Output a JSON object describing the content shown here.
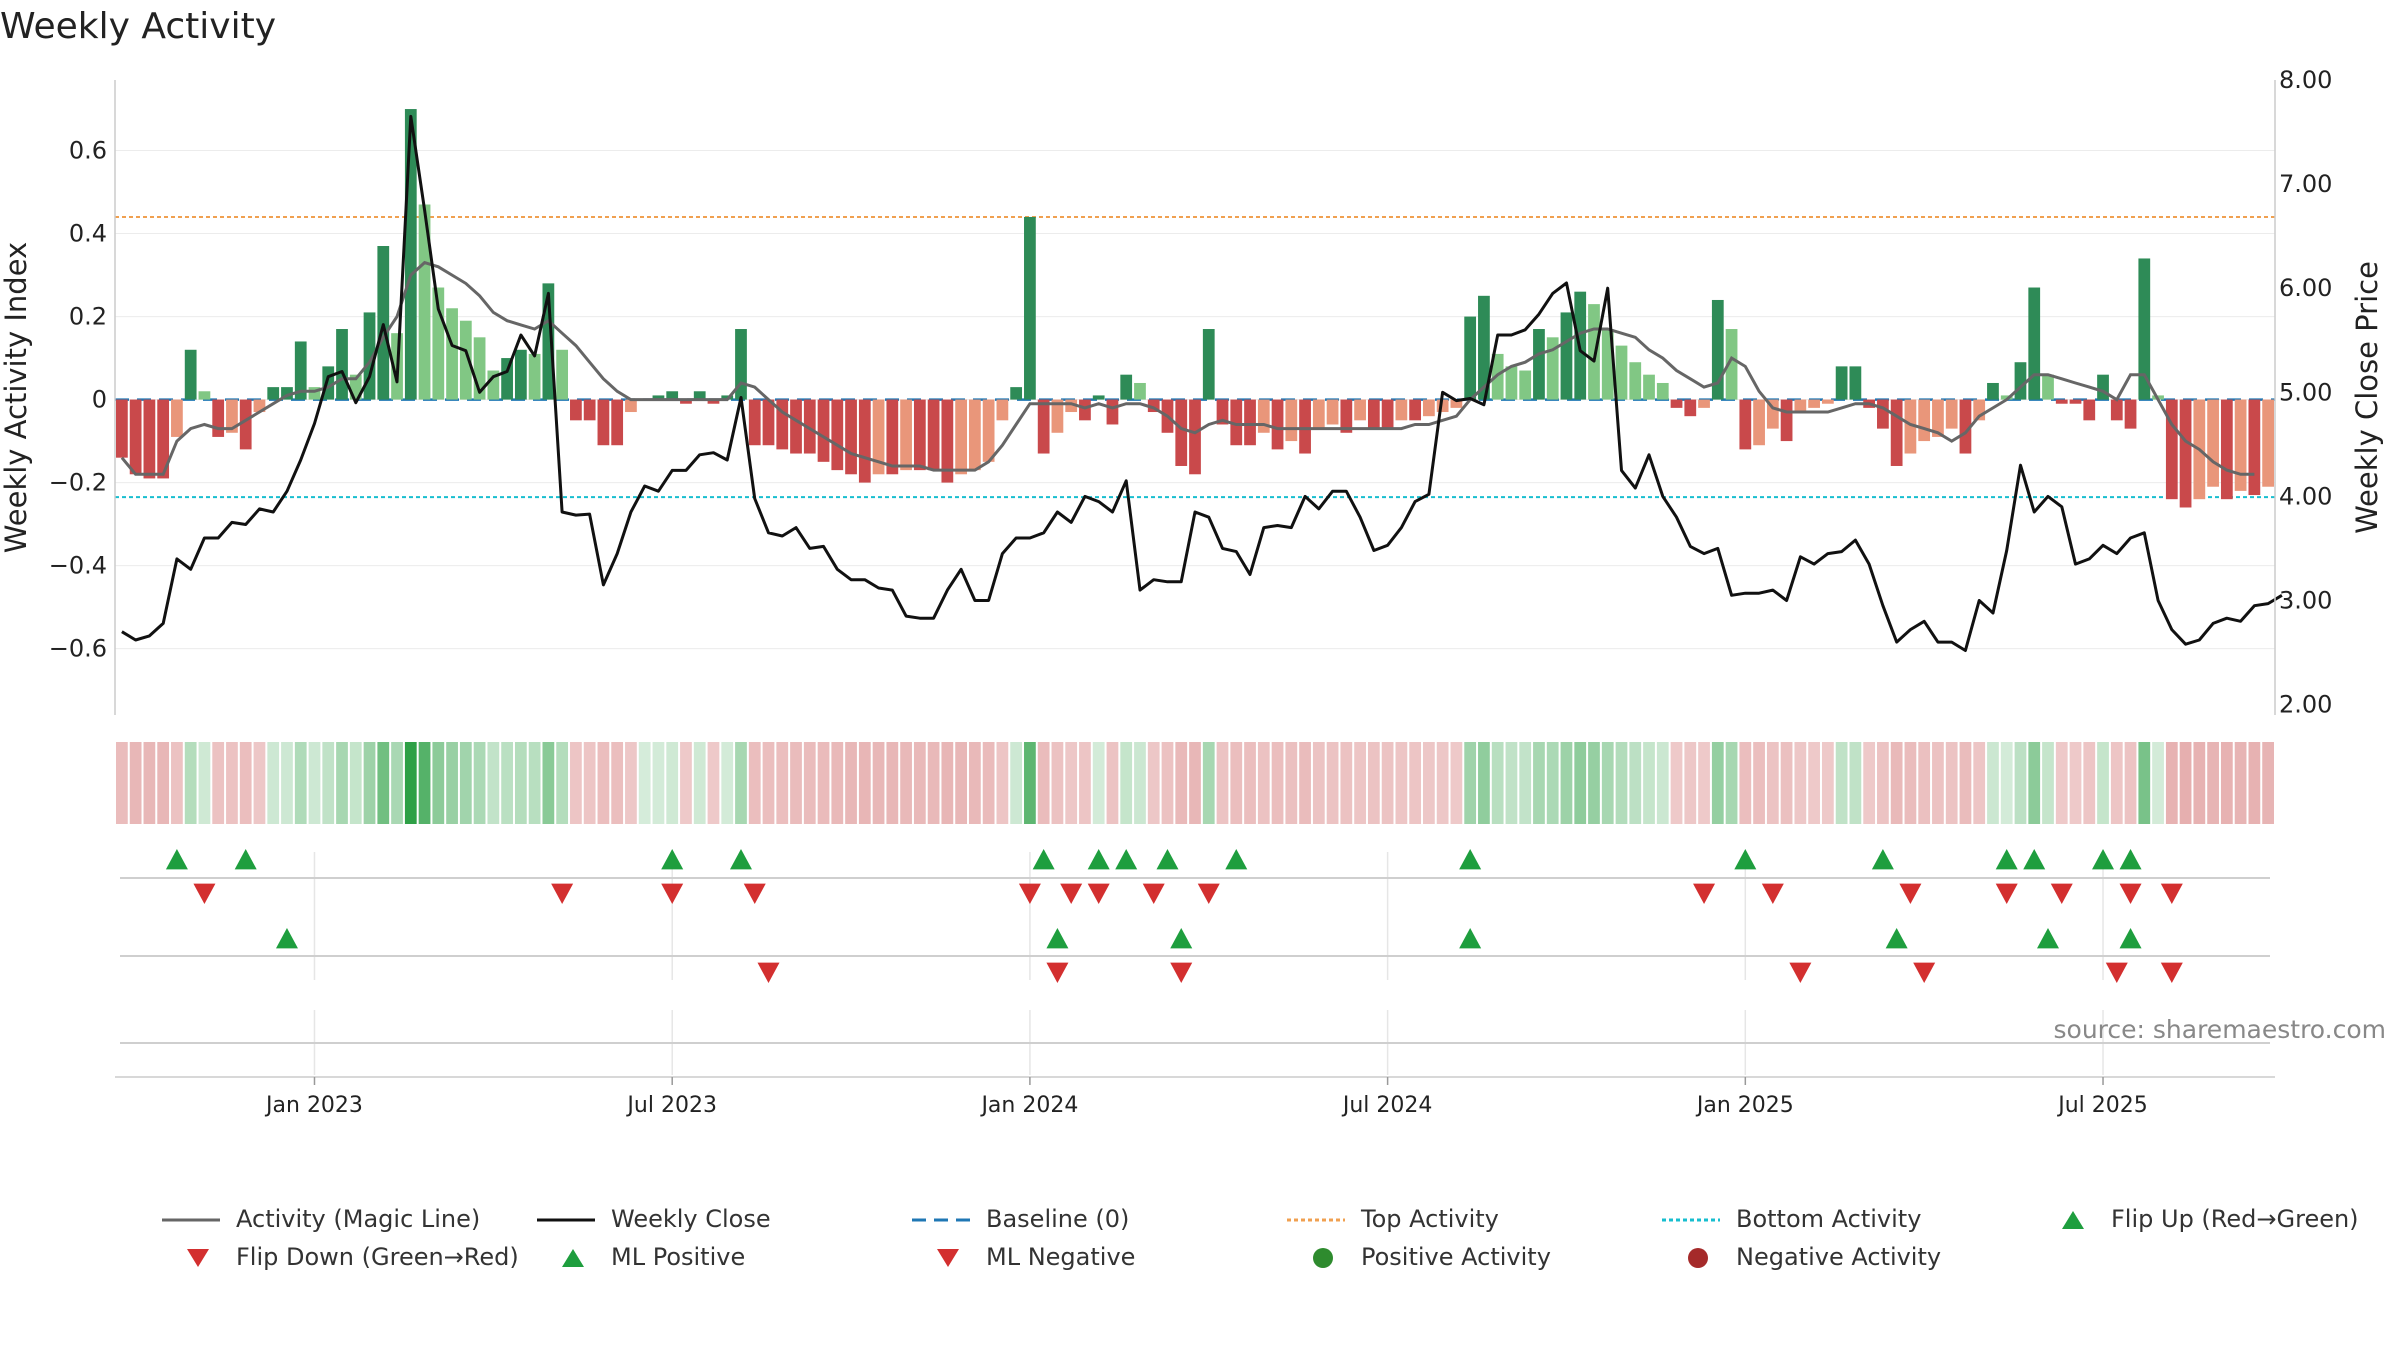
{
  "title": "Weekly Activity",
  "source": "source: sharemaestro.com",
  "colors": {
    "strong_green": "#2e8b57",
    "light_green": "#81c784",
    "strong_red": "#c9494b",
    "light_red": "#e9967a",
    "magic_line": "#666666",
    "close_line": "#111111",
    "baseline": "#1f77b4",
    "top_line": "#f0a050",
    "bottom_line": "#17becf",
    "marker_up": "#1e9e3e",
    "marker_down": "#d32f2f"
  },
  "chart_data": {
    "type": "bar",
    "title": "Weekly Activity",
    "ylabel": "Weekly Activity Index",
    "y2label": "Weekly Close Price",
    "ylim": [
      -0.76,
      0.77
    ],
    "y2lim": [
      1.9,
      8.0
    ],
    "yticks": [
      "0.6",
      "0.4",
      "0.2",
      "0",
      "−0.2",
      "−0.4",
      "−0.6"
    ],
    "ytick_values": [
      0.6,
      0.4,
      0.2,
      0,
      -0.2,
      -0.4,
      -0.6
    ],
    "y2ticks": [
      "8.00",
      "7.00",
      "6.00",
      "5.00",
      "4.00",
      "3.00",
      "2.00"
    ],
    "y2tick_values": [
      8,
      7,
      6,
      5,
      4,
      3,
      2
    ],
    "xticks": [
      "Jan 2023",
      "Jul 2023",
      "Jan 2024",
      "Jul 2024",
      "Jan 2025",
      "Jul 2025"
    ],
    "xtick_weeks": [
      14.5,
      40.5,
      66.5,
      92.5,
      118.5,
      144.5
    ],
    "top_activity": 0.44,
    "bottom_activity": -0.235,
    "baseline": 0,
    "activity": [
      -0.14,
      -0.18,
      -0.19,
      -0.19,
      -0.09,
      0.12,
      0.02,
      -0.09,
      -0.08,
      -0.12,
      -0.03,
      0.03,
      0.03,
      0.14,
      0.03,
      0.08,
      0.17,
      0.06,
      0.21,
      0.37,
      0.16,
      0.7,
      0.47,
      0.27,
      0.22,
      0.19,
      0.15,
      0.07,
      0.1,
      0.12,
      0.11,
      0.28,
      0.12,
      -0.05,
      -0.05,
      -0.11,
      -0.11,
      -0.03,
      0.0,
      0.01,
      0.02,
      -0.01,
      0.02,
      -0.01,
      0.01,
      0.17,
      -0.11,
      -0.11,
      -0.12,
      -0.13,
      -0.13,
      -0.15,
      -0.17,
      -0.18,
      -0.2,
      -0.18,
      -0.18,
      -0.17,
      -0.17,
      -0.17,
      -0.2,
      -0.18,
      -0.17,
      -0.15,
      -0.05,
      0.03,
      0.44,
      -0.13,
      -0.08,
      -0.03,
      -0.05,
      0.01,
      -0.06,
      0.06,
      0.04,
      -0.03,
      -0.08,
      -0.16,
      -0.18,
      0.17,
      -0.06,
      -0.11,
      -0.11,
      -0.08,
      -0.12,
      -0.1,
      -0.13,
      -0.07,
      -0.06,
      -0.08,
      -0.05,
      -0.07,
      -0.07,
      -0.05,
      -0.05,
      -0.04,
      -0.03,
      -0.02,
      0.2,
      0.25,
      0.11,
      0.08,
      0.07,
      0.17,
      0.15,
      0.21,
      0.26,
      0.23,
      0.17,
      0.13,
      0.09,
      0.06,
      0.04,
      -0.02,
      -0.04,
      -0.02,
      0.24,
      0.17,
      -0.12,
      -0.11,
      -0.07,
      -0.1,
      -0.03,
      -0.02,
      -0.01,
      0.08,
      0.08,
      -0.02,
      -0.07,
      -0.16,
      -0.13,
      -0.1,
      -0.09,
      -0.07,
      -0.13,
      -0.05,
      0.04,
      0.01,
      0.09,
      0.27,
      0.06,
      -0.01,
      -0.01,
      -0.05,
      0.06,
      -0.05,
      -0.07,
      0.34,
      0.01,
      -0.24,
      -0.26,
      -0.24,
      -0.21,
      -0.24,
      -0.22,
      -0.23,
      -0.21
    ],
    "weekly_close": [
      2.7,
      2.62,
      2.66,
      2.78,
      3.4,
      3.3,
      3.6,
      3.6,
      3.75,
      3.73,
      3.88,
      3.85,
      4.05,
      4.35,
      4.7,
      5.15,
      5.2,
      4.9,
      5.15,
      5.65,
      5.1,
      7.65,
      6.75,
      5.8,
      5.45,
      5.4,
      5.0,
      5.15,
      5.2,
      5.55,
      5.35,
      5.95,
      3.85,
      3.82,
      3.83,
      3.15,
      3.45,
      3.85,
      4.1,
      4.05,
      4.25,
      4.25,
      4.4,
      4.42,
      4.35,
      4.95,
      3.98,
      3.65,
      3.62,
      3.7,
      3.5,
      3.52,
      3.3,
      3.2,
      3.2,
      3.12,
      3.1,
      2.85,
      2.83,
      2.83,
      3.1,
      3.3,
      3.0,
      3.0,
      3.45,
      3.6,
      3.6,
      3.65,
      3.85,
      3.75,
      4.0,
      3.95,
      3.85,
      4.15,
      3.1,
      3.2,
      3.18,
      3.18,
      3.85,
      3.8,
      3.5,
      3.47,
      3.25,
      3.7,
      3.72,
      3.7,
      4.0,
      3.88,
      4.05,
      4.05,
      3.8,
      3.48,
      3.53,
      3.7,
      3.95,
      4.02,
      5.0,
      4.92,
      4.94,
      4.88,
      5.55,
      5.55,
      5.6,
      5.75,
      5.95,
      6.05,
      5.4,
      5.3,
      6.0,
      4.25,
      4.08,
      4.4,
      4.0,
      3.8,
      3.52,
      3.45,
      3.5,
      3.05,
      3.07,
      3.07,
      3.1,
      3.0,
      3.42,
      3.35,
      3.45,
      3.47,
      3.58,
      3.35,
      2.95,
      2.6,
      2.72,
      2.8,
      2.6,
      2.6,
      2.52,
      3.0,
      2.88,
      3.48,
      4.3,
      3.85,
      4.0,
      3.9,
      3.35,
      3.4,
      3.53,
      3.45,
      3.6,
      3.65,
      3.0,
      2.72,
      2.58,
      2.62,
      2.78,
      2.83,
      2.8,
      2.95,
      2.97,
      3.05
    ],
    "magic_line": [
      -0.14,
      -0.18,
      -0.18,
      -0.18,
      -0.1,
      -0.07,
      -0.06,
      -0.07,
      -0.07,
      -0.05,
      -0.03,
      -0.01,
      0.01,
      0.02,
      0.02,
      0.03,
      0.05,
      0.05,
      0.09,
      0.15,
      0.2,
      0.3,
      0.33,
      0.32,
      0.3,
      0.28,
      0.25,
      0.21,
      0.19,
      0.18,
      0.17,
      0.19,
      0.16,
      0.13,
      0.09,
      0.05,
      0.02,
      0.0,
      0.0,
      0.0,
      0.0,
      0.0,
      0.0,
      0.0,
      0.0,
      0.04,
      0.03,
      0.0,
      -0.03,
      -0.05,
      -0.07,
      -0.09,
      -0.11,
      -0.13,
      -0.14,
      -0.15,
      -0.16,
      -0.16,
      -0.16,
      -0.17,
      -0.17,
      -0.17,
      -0.17,
      -0.15,
      -0.11,
      -0.06,
      -0.01,
      -0.01,
      -0.01,
      -0.01,
      -0.02,
      -0.01,
      -0.02,
      -0.01,
      -0.01,
      -0.02,
      -0.04,
      -0.07,
      -0.08,
      -0.06,
      -0.05,
      -0.06,
      -0.06,
      -0.06,
      -0.07,
      -0.07,
      -0.07,
      -0.07,
      -0.07,
      -0.07,
      -0.07,
      -0.07,
      -0.07,
      -0.07,
      -0.06,
      -0.06,
      -0.05,
      -0.04,
      0.0,
      0.03,
      0.06,
      0.08,
      0.09,
      0.11,
      0.12,
      0.14,
      0.16,
      0.17,
      0.17,
      0.16,
      0.15,
      0.12,
      0.1,
      0.07,
      0.05,
      0.03,
      0.04,
      0.1,
      0.08,
      0.02,
      -0.02,
      -0.03,
      -0.03,
      -0.03,
      -0.03,
      -0.02,
      -0.01,
      -0.01,
      -0.02,
      -0.04,
      -0.06,
      -0.07,
      -0.08,
      -0.1,
      -0.08,
      -0.04,
      -0.02,
      0.0,
      0.03,
      0.06,
      0.06,
      0.05,
      0.04,
      0.03,
      0.02,
      0.0,
      0.06,
      0.06,
      0.0,
      -0.06,
      -0.1,
      -0.12,
      -0.15,
      -0.17,
      -0.18,
      -0.18
    ],
    "flip_up": [
      4.5,
      9.5,
      40.5,
      45.5,
      67.5,
      71.5,
      73.5,
      76.5,
      81.5,
      98.5,
      118.5,
      128.5,
      137.5,
      139.5,
      144.5,
      146.5
    ],
    "flip_down": [
      6.5,
      32.5,
      40.5,
      46.5,
      66.5,
      69.5,
      71.5,
      75.5,
      79.5,
      115.5,
      120.5,
      130.5,
      137.5,
      141.5,
      146.5,
      149.5
    ],
    "ml_positive": [
      12.5,
      68.5,
      77.5,
      98.5,
      129.5,
      140.5,
      146.5
    ],
    "ml_negative": [
      47.5,
      68.5,
      77.5,
      122.5,
      131.5,
      145.5,
      149.5
    ]
  },
  "legend": [
    {
      "label": "Activity (Magic Line)",
      "symbol": "line-solid",
      "color": "#666666"
    },
    {
      "label": "Weekly Close",
      "symbol": "line-solid",
      "color": "#111111"
    },
    {
      "label": "Baseline (0)",
      "symbol": "line-dashed",
      "color": "#1f77b4"
    },
    {
      "label": "Top Activity",
      "symbol": "line-dotted",
      "color": "#f0a050"
    },
    {
      "label": "Bottom Activity",
      "symbol": "line-dotted",
      "color": "#17becf"
    },
    {
      "label": "Flip Up (Red→Green)",
      "symbol": "triangle-up",
      "color": "#1e9e3e"
    },
    {
      "label": "Flip Down (Green→Red)",
      "symbol": "triangle-down",
      "color": "#d32f2f"
    },
    {
      "label": "ML Positive",
      "symbol": "triangle-up",
      "color": "#1e9e3e"
    },
    {
      "label": "ML Negative",
      "symbol": "triangle-down",
      "color": "#d32f2f"
    },
    {
      "label": "Positive Activity",
      "symbol": "circle",
      "color": "#2e8b2e"
    },
    {
      "label": "Negative Activity",
      "symbol": "circle",
      "color": "#a52a2a"
    }
  ]
}
